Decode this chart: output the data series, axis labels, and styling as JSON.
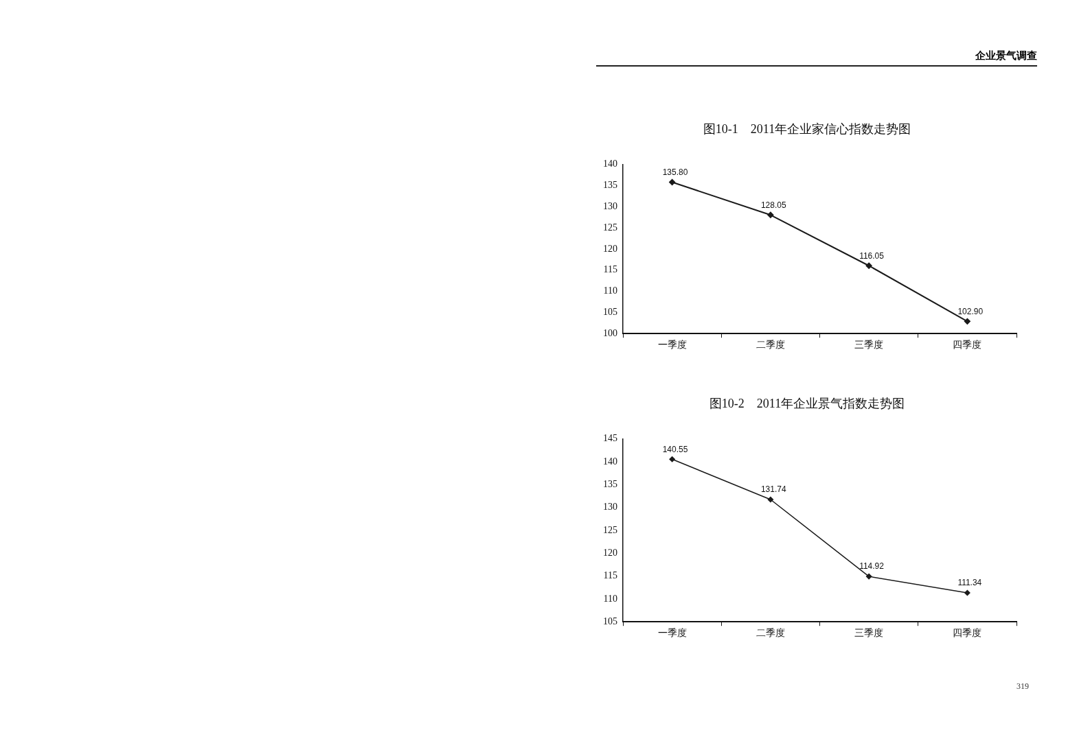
{
  "chart_data": [
    {
      "type": "line",
      "title": "图10-1　2011年企业家信心指数走势图",
      "categories": [
        "一季度",
        "二季度",
        "三季度",
        "四季度"
      ],
      "values": [
        135.8,
        128.05,
        116.05,
        102.9
      ],
      "value_labels": [
        "135.80",
        "128.05",
        "116.05",
        "102.90"
      ],
      "color": "#1a1a1a",
      "ylim": [
        100,
        140
      ],
      "yticks": [
        100,
        105,
        110,
        115,
        120,
        125,
        130,
        135,
        140
      ],
      "grid": false,
      "legend": false,
      "marker": "diamond",
      "line_style": "solid",
      "annotations": [
        "企业景气调查"
      ]
    },
    {
      "type": "line",
      "title": "图10-2　2011年企业景气指数走势图",
      "categories": [
        "一季度",
        "二季度",
        "三季度",
        "四季度"
      ],
      "values": [
        140.55,
        131.74,
        114.92,
        111.34
      ],
      "value_labels": [
        "140.55",
        "131.74",
        "114.92",
        "111.34"
      ],
      "color": "#1a1a1a",
      "ylim": [
        105,
        145
      ],
      "yticks": [
        105,
        110,
        115,
        120,
        125,
        130,
        135,
        140,
        145
      ],
      "grid": false,
      "legend": false,
      "marker": "diamond",
      "line_style": "solid",
      "annotations": [
        "319"
      ]
    }
  ]
}
